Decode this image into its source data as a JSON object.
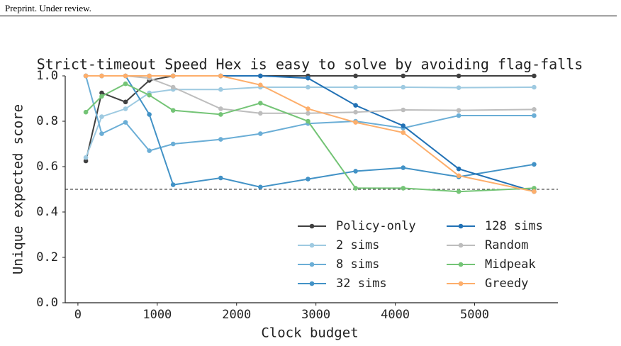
{
  "header": {
    "text": "Preprint. Under review."
  },
  "chart_data": {
    "type": "line",
    "title": "Strict-timeout Speed Hex is easy to solve by avoiding flag-falls",
    "x_label": "Clock budget",
    "y_label": "Unique expected score",
    "x": [
      100,
      300,
      600,
      900,
      1200,
      1800,
      2300,
      2900,
      3500,
      4100,
      4800,
      5750
    ],
    "xlim": [
      -160,
      6050
    ],
    "xticks": [
      0,
      1000,
      2000,
      3000,
      4000,
      5000
    ],
    "ylim": [
      0,
      1
    ],
    "yticks": [
      {
        "value": 0,
        "label": "0.0"
      },
      0.2,
      0.4,
      0.6,
      0.8,
      {
        "value": 1,
        "label": "1.0"
      }
    ],
    "reference_line": 0.5,
    "series": [
      {
        "name": "Policy-only",
        "color": "#404040",
        "values": [
          0.625,
          0.925,
          0.885,
          0.98,
          1.0,
          1.0,
          1.0,
          1.0,
          1.0,
          1.0,
          1.0,
          1.0
        ]
      },
      {
        "name": "2 sims",
        "color": "#9ecae1",
        "values": [
          0.64,
          0.82,
          0.855,
          0.925,
          0.94,
          0.94,
          0.95,
          0.95,
          0.95,
          0.95,
          0.948,
          0.95
        ]
      },
      {
        "name": "8 sims",
        "color": "#6baed6",
        "values": [
          1.0,
          0.745,
          0.795,
          0.67,
          0.7,
          0.72,
          0.745,
          0.79,
          0.8,
          0.77,
          0.825,
          0.825
        ]
      },
      {
        "name": "32 sims",
        "color": "#4292c6",
        "values": [
          1.0,
          1.0,
          1.0,
          0.83,
          0.52,
          0.55,
          0.51,
          0.545,
          0.58,
          0.595,
          0.555,
          0.61
        ]
      },
      {
        "name": "128 sims",
        "color": "#2171b5",
        "values": [
          1.0,
          1.0,
          1.0,
          1.0,
          1.0,
          1.0,
          1.0,
          0.99,
          0.87,
          0.78,
          0.59,
          0.49
        ]
      },
      {
        "name": "Random",
        "color": "#bdbdbd",
        "values": [
          1.0,
          1.0,
          1.0,
          0.99,
          0.95,
          0.855,
          0.835,
          0.835,
          0.84,
          0.85,
          0.848,
          0.852
        ]
      },
      {
        "name": "Midpeak",
        "color": "#74c476",
        "values": [
          0.84,
          0.91,
          0.965,
          0.915,
          0.848,
          0.83,
          0.88,
          0.8,
          0.505,
          0.505,
          0.49,
          0.505
        ]
      },
      {
        "name": "Greedy",
        "color": "#fdae6b",
        "values": [
          1.0,
          1.0,
          1.0,
          1.0,
          1.0,
          1.0,
          0.96,
          0.855,
          0.795,
          0.75,
          0.56,
          0.49
        ]
      }
    ]
  }
}
